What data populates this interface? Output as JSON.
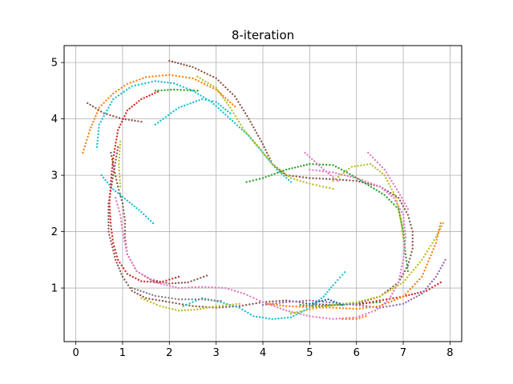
{
  "chart_data": {
    "type": "scatter",
    "title": "8-iteration",
    "xlabel": "",
    "ylabel": "",
    "xlim": [
      -0.25,
      8.25
    ],
    "ylim": [
      0.05,
      5.3
    ],
    "xticks": [
      0,
      1,
      2,
      3,
      4,
      5,
      6,
      7,
      8
    ],
    "yticks": [
      1,
      2,
      3,
      4,
      5
    ],
    "grid": true,
    "colors": [
      "#1f77b4",
      "#ff7f0e",
      "#2ca02c",
      "#d62728",
      "#9467bd",
      "#8c564b",
      "#e377c2",
      "#7f7f7f",
      "#bcbd22",
      "#17becf"
    ],
    "series": [
      {
        "color": "#ff7f0e",
        "points": [
          [
            0.15,
            3.4
          ],
          [
            0.3,
            3.8
          ],
          [
            0.5,
            4.2
          ],
          [
            0.8,
            4.45
          ],
          [
            1.1,
            4.62
          ],
          [
            1.5,
            4.74
          ],
          [
            2.0,
            4.78
          ],
          [
            2.5,
            4.72
          ],
          [
            3.0,
            4.52
          ],
          [
            3.4,
            4.22
          ]
        ]
      },
      {
        "color": "#8c564b",
        "points": [
          [
            2.0,
            5.03
          ],
          [
            2.5,
            4.92
          ],
          [
            3.0,
            4.72
          ],
          [
            3.4,
            4.4
          ],
          [
            3.7,
            4.0
          ],
          [
            4.0,
            3.55
          ],
          [
            4.2,
            3.2
          ],
          [
            4.5,
            3.0
          ],
          [
            5.0,
            2.95
          ],
          [
            5.5,
            2.93
          ],
          [
            6.0,
            2.9
          ],
          [
            6.5,
            2.8
          ],
          [
            6.9,
            2.6
          ],
          [
            7.1,
            2.3
          ],
          [
            7.2,
            2.0
          ],
          [
            7.2,
            1.7
          ],
          [
            7.1,
            1.4
          ],
          [
            6.9,
            1.1
          ],
          [
            6.5,
            0.85
          ],
          [
            6.0,
            0.72
          ],
          [
            5.5,
            0.7
          ],
          [
            5.0,
            0.72
          ],
          [
            4.5,
            0.78
          ],
          [
            4.0,
            0.75
          ],
          [
            3.5,
            0.68
          ],
          [
            3.0,
            0.65
          ],
          [
            2.5,
            0.68
          ],
          [
            2.0,
            0.75
          ],
          [
            1.5,
            0.82
          ],
          [
            1.2,
            0.95
          ],
          [
            1.0,
            1.2
          ],
          [
            0.85,
            1.5
          ],
          [
            0.7,
            2.0
          ],
          [
            0.7,
            2.5
          ],
          [
            0.8,
            3.0
          ],
          [
            0.9,
            3.5
          ]
        ]
      },
      {
        "color": "#8c564b",
        "points": [
          [
            0.25,
            4.28
          ],
          [
            0.6,
            4.1
          ],
          [
            1.0,
            4.0
          ],
          [
            1.4,
            3.95
          ]
        ]
      },
      {
        "color": "#8c564b",
        "points": [
          [
            0.75,
            3.4
          ],
          [
            0.82,
            3.1
          ],
          [
            0.9,
            2.8
          ],
          [
            1.0,
            2.5
          ],
          [
            1.05,
            2.2
          ],
          [
            1.05,
            1.9
          ],
          [
            1.1,
            1.6
          ],
          [
            1.3,
            1.3
          ],
          [
            1.6,
            1.15
          ],
          [
            2.0,
            1.08
          ],
          [
            2.4,
            1.1
          ],
          [
            2.8,
            1.22
          ]
        ]
      },
      {
        "color": "#17becf",
        "points": [
          [
            0.45,
            3.5
          ],
          [
            0.5,
            3.9
          ],
          [
            0.8,
            4.35
          ],
          [
            1.2,
            4.58
          ],
          [
            1.7,
            4.67
          ],
          [
            2.1,
            4.63
          ],
          [
            2.5,
            4.5
          ],
          [
            2.9,
            4.3
          ],
          [
            3.3,
            4.0
          ],
          [
            3.7,
            3.7
          ],
          [
            4.0,
            3.4
          ],
          [
            4.3,
            3.1
          ],
          [
            4.6,
            2.88
          ]
        ]
      },
      {
        "color": "#17becf",
        "points": [
          [
            0.55,
            3.0
          ],
          [
            0.8,
            2.75
          ],
          [
            1.1,
            2.55
          ],
          [
            1.4,
            2.35
          ],
          [
            1.65,
            2.15
          ]
        ]
      },
      {
        "color": "#17becf",
        "points": [
          [
            2.3,
            0.68
          ],
          [
            2.7,
            0.82
          ],
          [
            3.1,
            0.75
          ],
          [
            3.5,
            0.65
          ],
          [
            3.8,
            0.5
          ],
          [
            4.2,
            0.45
          ],
          [
            4.6,
            0.48
          ],
          [
            5.0,
            0.65
          ],
          [
            5.3,
            0.85
          ],
          [
            5.5,
            1.05
          ],
          [
            5.75,
            1.28
          ]
        ]
      },
      {
        "color": "#17becf",
        "points": [
          [
            1.7,
            3.9
          ],
          [
            2.2,
            4.2
          ],
          [
            2.7,
            4.35
          ],
          [
            3.0,
            4.3
          ],
          [
            3.3,
            4.1
          ]
        ]
      },
      {
        "color": "#2ca02c",
        "points": [
          [
            1.7,
            4.5
          ],
          [
            2.1,
            4.52
          ],
          [
            2.6,
            4.5
          ]
        ]
      },
      {
        "color": "#2ca02c",
        "points": [
          [
            3.65,
            2.88
          ],
          [
            4.0,
            2.95
          ],
          [
            4.5,
            3.1
          ],
          [
            5.0,
            3.2
          ],
          [
            5.5,
            3.18
          ],
          [
            5.8,
            3.05
          ],
          [
            6.2,
            2.85
          ],
          [
            6.6,
            2.65
          ],
          [
            6.9,
            2.4
          ],
          [
            7.0,
            2.0
          ],
          [
            7.05,
            1.6
          ],
          [
            7.1,
            1.3
          ]
        ]
      },
      {
        "color": "#2ca02c",
        "points": [
          [
            4.8,
            0.7
          ],
          [
            5.2,
            0.68
          ],
          [
            5.6,
            0.7
          ],
          [
            6.0,
            0.72
          ],
          [
            6.5,
            0.75
          ]
        ]
      },
      {
        "color": "#d62728",
        "points": [
          [
            1.75,
            4.48
          ],
          [
            1.4,
            4.35
          ],
          [
            1.1,
            4.15
          ],
          [
            0.9,
            3.8
          ],
          [
            0.8,
            3.3
          ],
          [
            0.75,
            2.9
          ],
          [
            0.72,
            2.5
          ],
          [
            0.75,
            2.1
          ],
          [
            0.8,
            1.8
          ],
          [
            0.9,
            1.5
          ],
          [
            1.1,
            1.25
          ],
          [
            1.4,
            1.12
          ],
          [
            1.8,
            1.1
          ],
          [
            2.2,
            1.2
          ]
        ]
      },
      {
        "color": "#d62728",
        "points": [
          [
            6.0,
            0.7
          ],
          [
            6.5,
            0.78
          ],
          [
            7.0,
            0.85
          ],
          [
            7.5,
            0.95
          ],
          [
            7.8,
            1.1
          ]
        ]
      },
      {
        "color": "#9467bd",
        "points": [
          [
            4.0,
            0.7
          ],
          [
            4.5,
            0.75
          ],
          [
            5.0,
            0.78
          ],
          [
            5.5,
            0.74
          ],
          [
            6.0,
            0.7
          ],
          [
            6.5,
            0.65
          ],
          [
            7.0,
            0.72
          ],
          [
            7.4,
            0.9
          ],
          [
            7.7,
            1.2
          ],
          [
            7.9,
            1.5
          ]
        ]
      },
      {
        "color": "#e377c2",
        "points": [
          [
            0.85,
            2.6
          ],
          [
            0.95,
            2.3
          ],
          [
            1.0,
            2.0
          ],
          [
            1.1,
            1.6
          ],
          [
            1.3,
            1.3
          ],
          [
            1.7,
            1.1
          ],
          [
            2.2,
            1.0
          ],
          [
            2.7,
            1.02
          ],
          [
            3.2,
            1.0
          ],
          [
            3.6,
            0.9
          ],
          [
            4.0,
            0.75
          ],
          [
            4.5,
            0.6
          ],
          [
            5.0,
            0.5
          ],
          [
            5.5,
            0.45
          ],
          [
            6.0,
            0.48
          ],
          [
            6.4,
            0.6
          ],
          [
            6.7,
            0.8
          ],
          [
            6.9,
            1.1
          ],
          [
            7.0,
            1.5
          ],
          [
            7.05,
            1.9
          ],
          [
            7.0,
            2.3
          ],
          [
            6.8,
            2.6
          ],
          [
            6.5,
            2.8
          ],
          [
            6.0,
            2.95
          ],
          [
            5.5,
            3.05
          ],
          [
            5.0,
            3.1
          ]
        ]
      },
      {
        "color": "#e377c2",
        "points": [
          [
            6.25,
            3.4
          ],
          [
            6.6,
            3.1
          ],
          [
            6.9,
            2.7
          ],
          [
            7.1,
            2.4
          ]
        ]
      },
      {
        "color": "#e377c2",
        "points": [
          [
            4.9,
            3.4
          ],
          [
            5.3,
            3.1
          ],
          [
            5.6,
            2.9
          ]
        ]
      },
      {
        "color": "#bcbd22",
        "points": [
          [
            1.4,
            0.82
          ],
          [
            1.8,
            0.68
          ],
          [
            2.2,
            0.6
          ],
          [
            2.6,
            0.62
          ],
          [
            3.0,
            0.68
          ],
          [
            3.5,
            0.72
          ]
        ]
      },
      {
        "color": "#bcbd22",
        "points": [
          [
            2.6,
            4.75
          ],
          [
            3.0,
            4.55
          ],
          [
            3.3,
            4.2
          ],
          [
            3.6,
            3.8
          ],
          [
            3.9,
            3.5
          ],
          [
            4.2,
            3.2
          ],
          [
            4.6,
            2.95
          ],
          [
            5.0,
            2.85
          ],
          [
            5.5,
            2.76
          ]
        ]
      },
      {
        "color": "#bcbd22",
        "points": [
          [
            5.5,
            2.9
          ],
          [
            5.9,
            3.15
          ],
          [
            6.3,
            3.2
          ],
          [
            6.6,
            3.0
          ],
          [
            6.85,
            2.6
          ],
          [
            6.95,
            2.2
          ],
          [
            7.0,
            1.9
          ]
        ]
      },
      {
        "color": "#bcbd22",
        "points": [
          [
            4.6,
            0.55
          ],
          [
            5.0,
            0.62
          ],
          [
            5.5,
            0.7
          ],
          [
            6.0,
            0.75
          ],
          [
            6.5,
            0.85
          ],
          [
            7.0,
            1.1
          ],
          [
            7.4,
            1.5
          ],
          [
            7.7,
            1.9
          ],
          [
            7.85,
            2.15
          ]
        ]
      },
      {
        "color": "#bcbd22",
        "points": [
          [
            0.95,
            3.6
          ],
          [
            0.92,
            3.2
          ],
          [
            0.95,
            2.8
          ]
        ]
      },
      {
        "color": "#7f7f7f",
        "points": [
          [
            1.2,
            1.0
          ],
          [
            1.7,
            0.86
          ],
          [
            2.2,
            0.8
          ],
          [
            2.7,
            0.8
          ],
          [
            3.1,
            0.77
          ]
        ]
      },
      {
        "color": "#ff7f0e",
        "points": [
          [
            4.1,
            0.72
          ],
          [
            4.5,
            0.68
          ],
          [
            5.0,
            0.66
          ],
          [
            5.5,
            0.65
          ],
          [
            6.0,
            0.63
          ],
          [
            6.5,
            0.68
          ],
          [
            7.0,
            0.85
          ],
          [
            7.4,
            1.2
          ],
          [
            7.7,
            1.8
          ],
          [
            7.8,
            2.15
          ]
        ]
      },
      {
        "color": "#ff7f0e",
        "points": [
          [
            5.7,
            0.45
          ],
          [
            6.0,
            0.45
          ],
          [
            6.2,
            0.5
          ]
        ]
      },
      {
        "color": "#1f77b4",
        "points": [
          [
            5.0,
            0.72
          ],
          [
            5.4,
            0.8
          ],
          [
            5.7,
            0.7
          ]
        ]
      }
    ]
  }
}
